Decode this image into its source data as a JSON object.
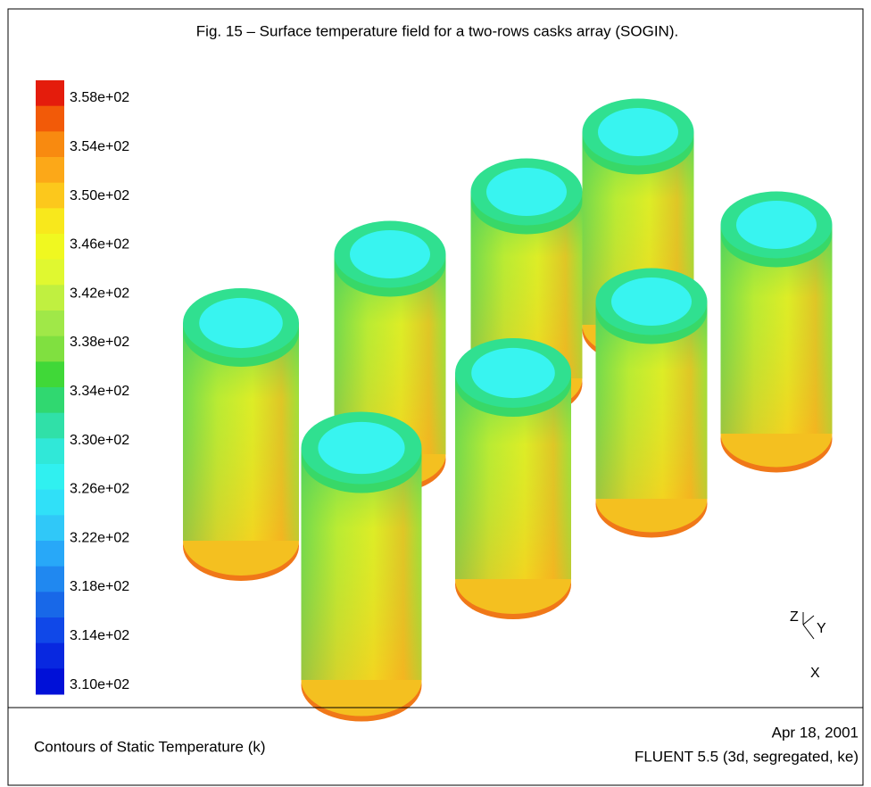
{
  "caption": "Fig. 15 – Surface temperature field for a two-rows casks array (SOGIN).",
  "colorbar": {
    "labels": [
      "3.58e+02",
      "3.54e+02",
      "3.50e+02",
      "3.46e+02",
      "3.42e+02",
      "3.38e+02",
      "3.34e+02",
      "3.30e+02",
      "3.26e+02",
      "3.22e+02",
      "3.18e+02",
      "3.14e+02",
      "3.10e+02"
    ]
  },
  "axes": {
    "z": "Z",
    "y": "Y",
    "x": "X"
  },
  "footer": {
    "left": "Contours of Static Temperature (k)",
    "date": "Apr 18, 2001",
    "software": "FLUENT 5.5 (3d, segregated, ke)"
  }
}
